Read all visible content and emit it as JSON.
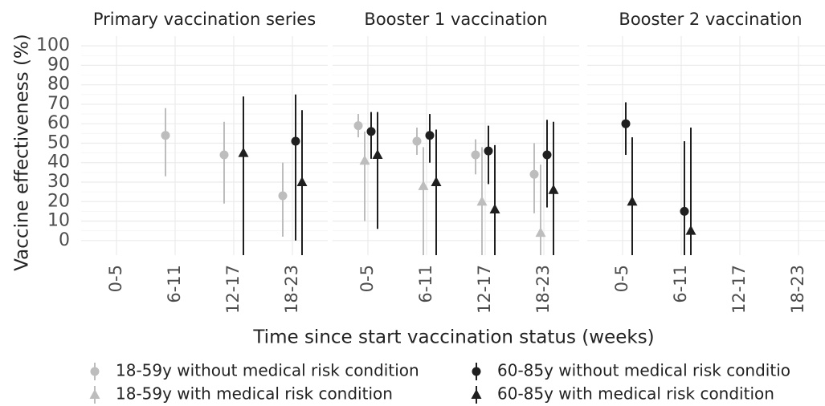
{
  "chart_data": [
    {
      "type": "errorbar",
      "title": "Primary vaccination series",
      "ylabel": "Vaccine effectiveness (%)",
      "xlabel": "Time since start vaccination status (weeks)",
      "ylim": [
        -7.5,
        105
      ],
      "yticks": [
        0,
        10,
        20,
        30,
        40,
        50,
        60,
        70,
        80,
        90,
        100
      ],
      "grid": true,
      "categories": [
        "0-5",
        "6-11",
        "12-17",
        "18-23"
      ],
      "series": [
        {
          "name": "18-59y without medical risk condition",
          "color": "#bdbdbd",
          "marker": "circle",
          "values": [
            null,
            54,
            44,
            23
          ],
          "lower": [
            null,
            33,
            19,
            2
          ],
          "upper": [
            null,
            68,
            61,
            40
          ]
        },
        {
          "name": "18-59y with medical risk condition",
          "color": "#bdbdbd",
          "marker": "triangle",
          "values": [
            null,
            null,
            null,
            null
          ],
          "lower": [
            null,
            null,
            null,
            null
          ],
          "upper": [
            null,
            null,
            null,
            null
          ]
        },
        {
          "name": "60-85y without medical risk conditio",
          "color": "#1f1f1f",
          "marker": "circle",
          "values": [
            null,
            null,
            null,
            51
          ],
          "lower": [
            null,
            null,
            null,
            0
          ],
          "upper": [
            null,
            null,
            null,
            75
          ]
        },
        {
          "name": "60-85y with medical risk condition",
          "color": "#1f1f1f",
          "marker": "triangle",
          "values": [
            null,
            null,
            45,
            30
          ],
          "lower": [
            null,
            null,
            -10,
            -10
          ],
          "upper": [
            null,
            null,
            74,
            67
          ]
        }
      ]
    },
    {
      "type": "errorbar",
      "title": "Booster 1 vaccination",
      "categories": [
        "0-5",
        "6-11",
        "12-17",
        "18-23"
      ],
      "series": [
        {
          "color": "#bdbdbd",
          "marker": "circle",
          "values": [
            59,
            51,
            44,
            34
          ],
          "lower": [
            53,
            44,
            34,
            14
          ],
          "upper": [
            65,
            58,
            52,
            50
          ]
        },
        {
          "color": "#bdbdbd",
          "marker": "triangle",
          "values": [
            41,
            28,
            20,
            4
          ],
          "lower": [
            10,
            -10,
            -10,
            -10
          ],
          "upper": [
            56,
            48,
            48,
            39
          ]
        },
        {
          "color": "#1f1f1f",
          "marker": "circle",
          "values": [
            56,
            54,
            46,
            44
          ],
          "lower": [
            42,
            40,
            29,
            17
          ],
          "upper": [
            66,
            65,
            59,
            62
          ]
        },
        {
          "color": "#1f1f1f",
          "marker": "triangle",
          "values": [
            44,
            30,
            16,
            26
          ],
          "lower": [
            6,
            -10,
            -10,
            -10
          ],
          "upper": [
            66,
            57,
            49,
            61
          ]
        }
      ]
    },
    {
      "type": "errorbar",
      "title": "Booster 2 vaccination",
      "categories": [
        "0-5",
        "6-11",
        "12-17",
        "18-23"
      ],
      "series": [
        {
          "color": "#bdbdbd",
          "marker": "circle",
          "values": [
            null,
            null,
            null,
            null
          ],
          "lower": [
            null,
            null,
            null,
            null
          ],
          "upper": [
            null,
            null,
            null,
            null
          ]
        },
        {
          "color": "#bdbdbd",
          "marker": "triangle",
          "values": [
            null,
            null,
            null,
            null
          ],
          "lower": [
            null,
            null,
            null,
            null
          ],
          "upper": [
            null,
            null,
            null,
            null
          ]
        },
        {
          "color": "#1f1f1f",
          "marker": "circle",
          "values": [
            60,
            15,
            null,
            null
          ],
          "lower": [
            44,
            -10,
            null,
            null
          ],
          "upper": [
            71,
            51,
            null,
            null
          ]
        },
        {
          "color": "#1f1f1f",
          "marker": "triangle",
          "values": [
            20,
            5,
            null,
            null
          ],
          "lower": [
            -10,
            -10,
            null,
            null
          ],
          "upper": [
            53,
            58,
            null,
            null
          ]
        }
      ]
    }
  ]
}
